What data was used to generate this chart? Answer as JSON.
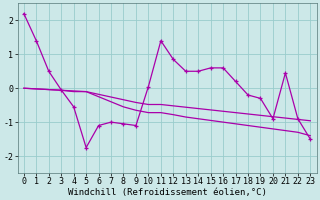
{
  "x": [
    0,
    1,
    2,
    3,
    4,
    5,
    6,
    7,
    8,
    9,
    10,
    11,
    12,
    13,
    14,
    15,
    16,
    17,
    18,
    19,
    20,
    21,
    22,
    23
  ],
  "line1": [
    2.2,
    1.4,
    0.5,
    -0.05,
    -0.55,
    -1.75,
    -1.1,
    -1.0,
    -1.05,
    -1.1,
    0.05,
    1.4,
    0.85,
    0.5,
    0.5,
    0.6,
    0.6,
    0.2,
    -0.2,
    -0.3,
    -0.9,
    0.45,
    -0.9,
    -1.5
  ],
  "line2": [
    0.0,
    -0.02,
    -0.04,
    -0.06,
    -0.08,
    -0.1,
    -0.18,
    -0.26,
    -0.34,
    -0.42,
    -0.48,
    -0.48,
    -0.52,
    -0.56,
    -0.6,
    -0.64,
    -0.68,
    -0.72,
    -0.76,
    -0.8,
    -0.84,
    -0.88,
    -0.92,
    -0.96
  ],
  "line3": [
    0.0,
    -0.02,
    -0.04,
    -0.06,
    -0.1,
    -0.1,
    -0.25,
    -0.4,
    -0.55,
    -0.65,
    -0.72,
    -0.72,
    -0.78,
    -0.85,
    -0.9,
    -0.95,
    -1.0,
    -1.05,
    -1.1,
    -1.15,
    -1.2,
    -1.25,
    -1.3,
    -1.4
  ],
  "background_color": "#cce8e8",
  "grid_color": "#99cccc",
  "line_color": "#aa00aa",
  "xlabel": "Windchill (Refroidissement éolien,°C)",
  "ylim": [
    -2.5,
    2.5
  ],
  "xlim": [
    -0.5,
    23.5
  ],
  "yticks": [
    -2,
    -1,
    0,
    1,
    2
  ],
  "xticks": [
    0,
    1,
    2,
    3,
    4,
    5,
    6,
    7,
    8,
    9,
    10,
    11,
    12,
    13,
    14,
    15,
    16,
    17,
    18,
    19,
    20,
    21,
    22,
    23
  ],
  "xlabel_fontsize": 6.5,
  "tick_fontsize": 6
}
